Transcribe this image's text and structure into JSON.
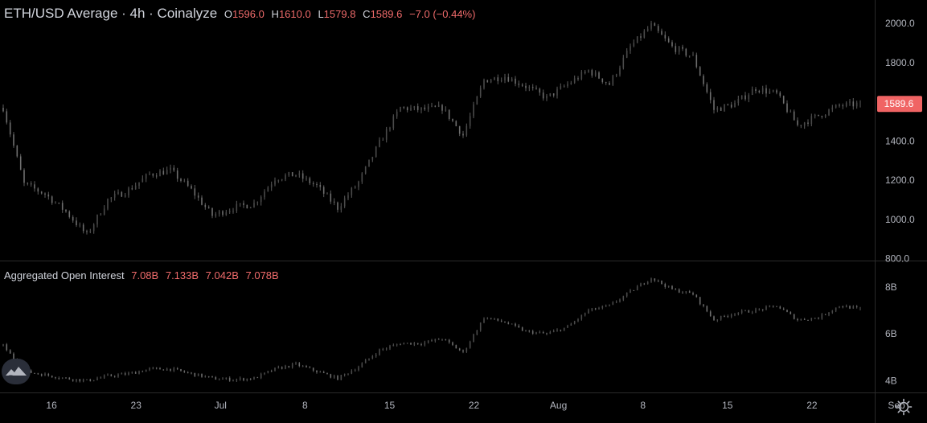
{
  "header": {
    "title": "ETH/USD Average · 4h · Coinalyze",
    "ohlc": {
      "open_label": "O",
      "open": "1596.0",
      "high_label": "H",
      "high": "1610.0",
      "low_label": "L",
      "low": "1579.8",
      "close_label": "C",
      "close": "1589.6",
      "change": "−7.0 (−0.44%)"
    }
  },
  "oi_header": {
    "title": "Aggregated Open Interest",
    "values": [
      "7.08B",
      "7.133B",
      "7.042B",
      "7.078B"
    ]
  },
  "colors": {
    "background": "#000000",
    "grid": "#1e1e1e",
    "candle": "#5d5d5d",
    "price_label_bg": "#f06464",
    "value_red": "#ef6b6b",
    "axis_text": "#b2b5be"
  },
  "icons": {
    "logo": "coinalyze-logo-icon",
    "settings": "gear-icon"
  },
  "chart_data": [
    {
      "type": "candlestick",
      "title": "ETH/USD Average · 4h · Coinalyze",
      "y_ticks": [
        "2000.0",
        "1800.0",
        "1600.0",
        "1400.0",
        "1200.0",
        "1000.0",
        "800.0"
      ],
      "ylim": [
        790,
        2120
      ],
      "last_price_label": "1589.6",
      "last_price": 1589.6,
      "grid": false,
      "x_ticks": [
        "16",
        "23",
        "Jul",
        "8",
        "15",
        "22",
        "Aug",
        "8",
        "15",
        "22",
        "Sep"
      ],
      "x": [
        "Jun 12",
        "Jun 14",
        "Jun 16",
        "Jun 18",
        "Jun 20",
        "Jun 22",
        "Jun 24",
        "Jun 26",
        "Jun 28",
        "Jun 30",
        "Jul 2",
        "Jul 4",
        "Jul 6",
        "Jul 8",
        "Jul 10",
        "Jul 12",
        "Jul 14",
        "Jul 16",
        "Jul 18",
        "Jul 20",
        "Jul 22",
        "Jul 24",
        "Jul 26",
        "Jul 28",
        "Jul 30",
        "Aug 1",
        "Aug 3",
        "Aug 5",
        "Aug 7",
        "Aug 9",
        "Aug 11",
        "Aug 13",
        "Aug 15",
        "Aug 17",
        "Aug 19",
        "Aug 21",
        "Aug 23",
        "Aug 25",
        "Aug 27",
        "Aug 29",
        "Aug 31",
        "Sep 2"
      ],
      "values": [
        1570,
        1180,
        1130,
        1040,
        920,
        1100,
        1150,
        1230,
        1250,
        1150,
        1020,
        1060,
        1080,
        1210,
        1230,
        1170,
        1060,
        1190,
        1390,
        1570,
        1560,
        1570,
        1430,
        1710,
        1730,
        1680,
        1620,
        1690,
        1760,
        1690,
        1880,
        1990,
        1880,
        1830,
        1560,
        1590,
        1670,
        1640,
        1480,
        1530,
        1580,
        1589.6
      ]
    },
    {
      "type": "candlestick",
      "title": "Aggregated Open Interest",
      "y_ticks": [
        "8B",
        "6B",
        "4B"
      ],
      "ylim": [
        3.5,
        9.1
      ],
      "grid": false,
      "x": [
        "Jun 12",
        "Jun 14",
        "Jun 16",
        "Jun 18",
        "Jun 20",
        "Jun 22",
        "Jun 24",
        "Jun 26",
        "Jun 28",
        "Jun 30",
        "Jul 2",
        "Jul 4",
        "Jul 6",
        "Jul 8",
        "Jul 10",
        "Jul 12",
        "Jul 14",
        "Jul 16",
        "Jul 18",
        "Jul 20",
        "Jul 22",
        "Jul 24",
        "Jul 26",
        "Jul 28",
        "Jul 30",
        "Aug 1",
        "Aug 3",
        "Aug 5",
        "Aug 7",
        "Aug 9",
        "Aug 11",
        "Aug 13",
        "Aug 15",
        "Aug 17",
        "Aug 19",
        "Aug 21",
        "Aug 23",
        "Aug 25",
        "Aug 27",
        "Aug 29",
        "Aug 31",
        "Sep 2"
      ],
      "values": [
        5.5,
        4.4,
        4.25,
        4.1,
        4.0,
        4.2,
        4.3,
        4.5,
        4.5,
        4.3,
        4.1,
        4.05,
        4.1,
        4.5,
        4.7,
        4.4,
        4.1,
        4.6,
        5.3,
        5.6,
        5.6,
        5.8,
        5.2,
        6.7,
        6.5,
        6.1,
        6.0,
        6.3,
        7.0,
        7.2,
        7.8,
        8.4,
        7.9,
        7.7,
        6.6,
        6.9,
        7.0,
        7.2,
        6.6,
        6.7,
        7.2,
        7.078
      ]
    }
  ]
}
